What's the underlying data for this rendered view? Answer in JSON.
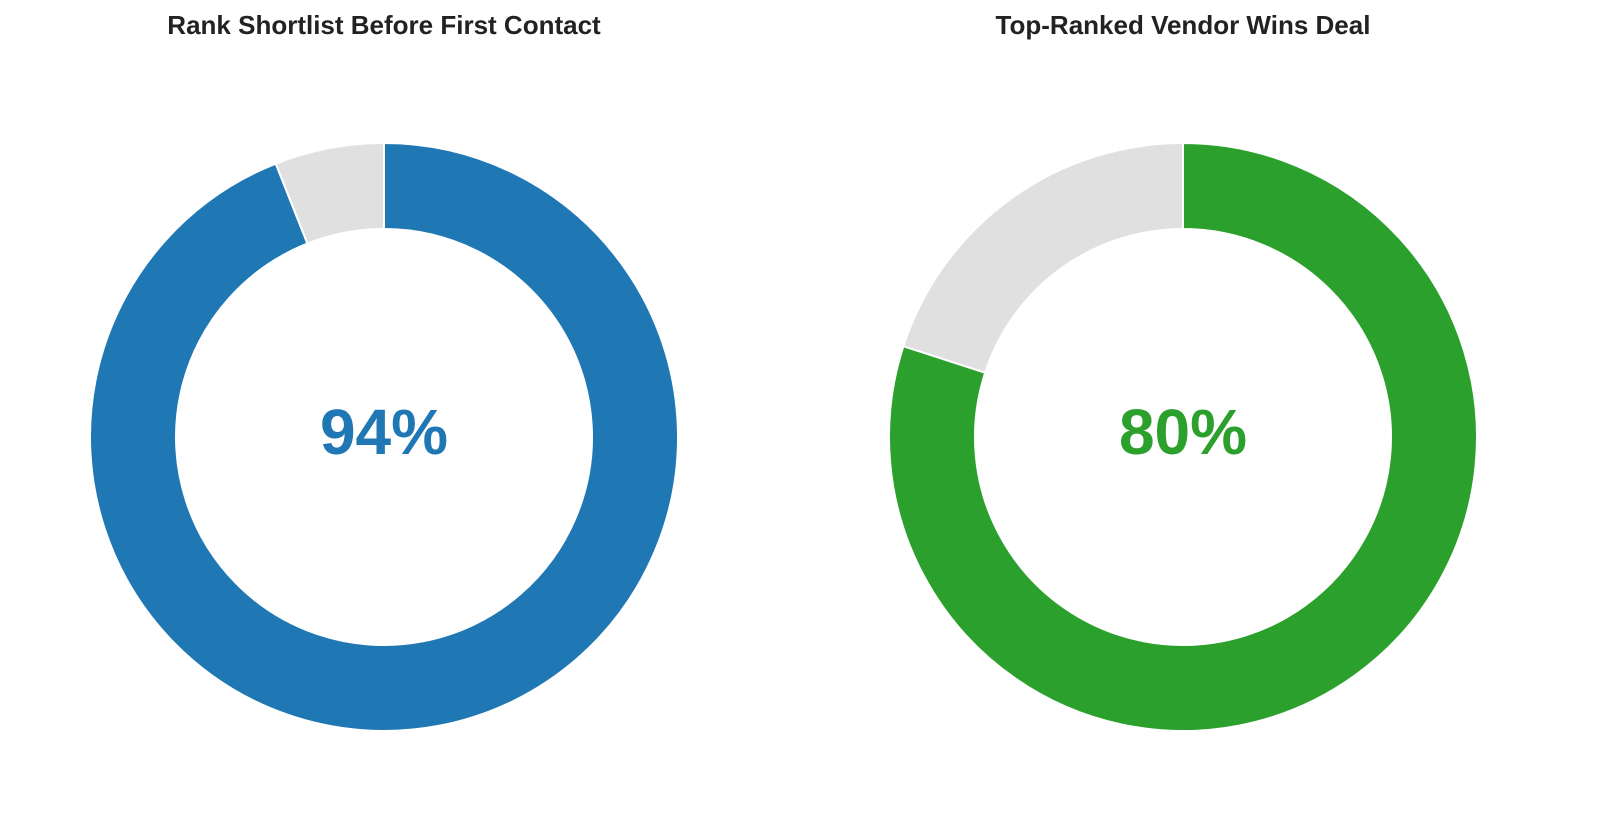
{
  "chart_data": [
    {
      "type": "donut",
      "title": "Rank Shortlist Before First Contact",
      "values": [
        94,
        6
      ],
      "value_labels": [
        "94%",
        null
      ],
      "colors": [
        "#1f77b4",
        "#e0e0e0"
      ]
    },
    {
      "type": "donut",
      "title": "Top-Ranked Vendor Wins Deal",
      "values": [
        80,
        20
      ],
      "value_labels": [
        "80%",
        null
      ],
      "colors": [
        "#2ca02c",
        "#e0e0e0"
      ]
    }
  ]
}
